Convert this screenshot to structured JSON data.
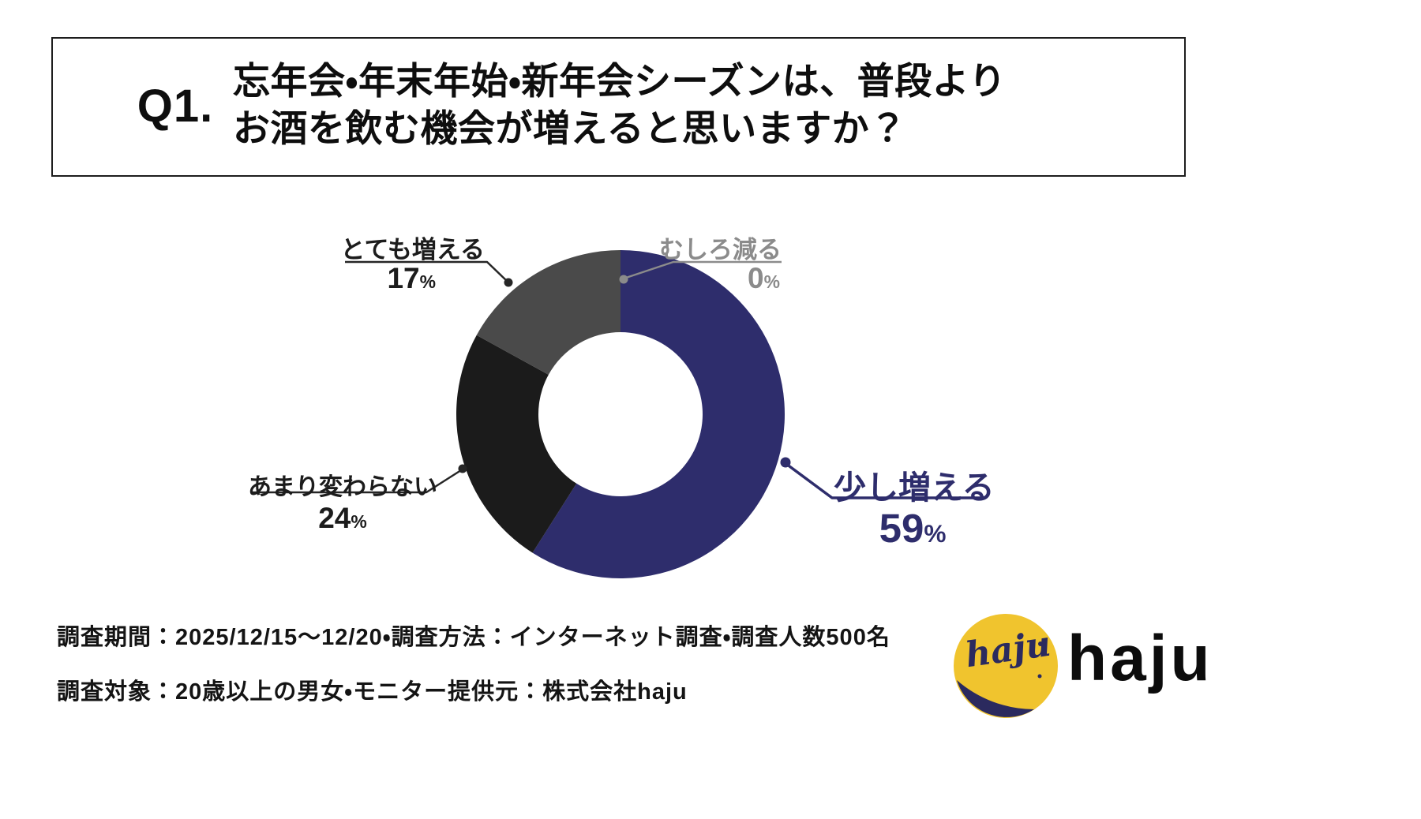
{
  "header": {
    "q_label": "Q1.",
    "title_lines": [
      "忘年会・年末年始・新年会シーズンは、普段より",
      "お酒を飲む機会が増えると思いますか？"
    ]
  },
  "chart_data": {
    "type": "pie",
    "donut": true,
    "start_angle_deg": 0,
    "direction": "clockwise",
    "inner_radius_ratio": 0.5,
    "unit": "%",
    "segments": [
      {
        "label": "少し増える",
        "value": 59,
        "color": "#2e2d6c"
      },
      {
        "label": "あまり変わらない",
        "value": 24,
        "color": "#1b1b1b"
      },
      {
        "label": "とても増える",
        "value": 17,
        "color": "#4a4a4a"
      },
      {
        "label": "むしろ減る",
        "value": 0,
        "color": "#8b8b8b"
      }
    ]
  },
  "callouts": {
    "sukoshi": {
      "label": "少し増える",
      "value": "59",
      "unit": "%"
    },
    "amari": {
      "label": "あまり変わらない",
      "value": "24",
      "unit": "%"
    },
    "totemo": {
      "label": "とても増える",
      "value": "17",
      "unit": "%"
    },
    "mushiro": {
      "label": "むしろ減る",
      "value": "0",
      "unit": "%"
    }
  },
  "footer": {
    "line1": "調査期間：2025/12/15～12/20・調査方法：インターネット調査・調査人数500名",
    "line2": "調査対象：20歳以上の男女・モニター提供元：株式会社haju"
  },
  "logo": {
    "wordmark": "haju",
    "mark_text": "haju",
    "colors": {
      "yellow": "#f0c42e",
      "navy": "#2b2a5e",
      "text": "#0c0c0c"
    }
  }
}
